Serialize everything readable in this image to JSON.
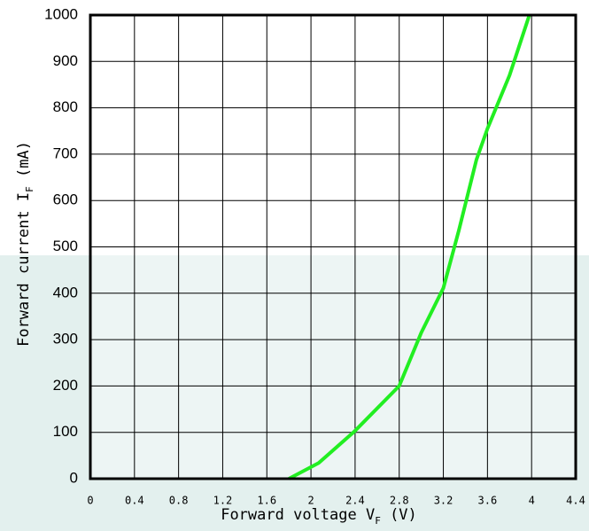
{
  "chart_data": {
    "type": "line",
    "xlabel": [
      "Forward voltage V",
      "F",
      " (V)"
    ],
    "ylabel": [
      "Forward current I",
      "F",
      " (mA)"
    ],
    "x": [
      1.8,
      2.07,
      2.39,
      2.8,
      3.0,
      3.2,
      3.34,
      3.5,
      3.6,
      3.8,
      3.98
    ],
    "series": [
      {
        "color": "#22ee22",
        "values": [
          0,
          34,
          101,
          200,
          315,
          411,
          535,
          688,
          755,
          870,
          1000
        ]
      }
    ],
    "xlim": [
      0,
      4.4
    ],
    "xticks": [
      0,
      0.4,
      0.8,
      1.2,
      1.6,
      2,
      2.4,
      2.8,
      3.2,
      3.6,
      4,
      4.4
    ],
    "ylim": [
      0,
      1000
    ],
    "yticks": [
      0,
      100,
      200,
      300,
      400,
      500,
      600,
      700,
      800,
      900,
      1000
    ],
    "grid": true
  }
}
